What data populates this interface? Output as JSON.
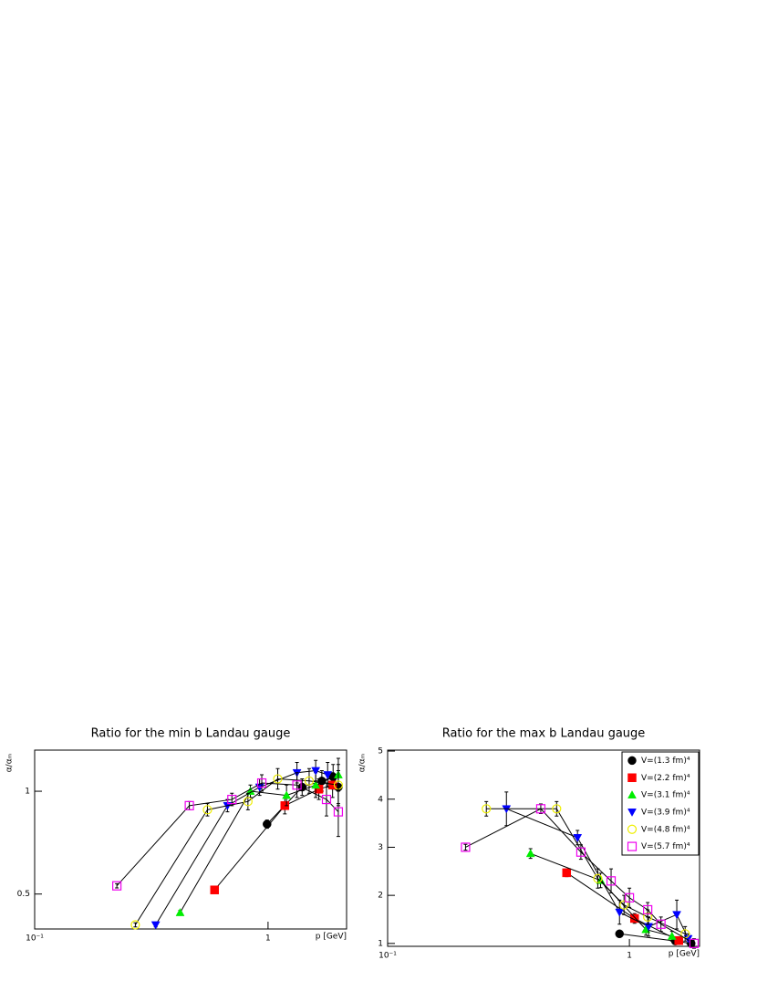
{
  "chart_data": [
    {
      "type": "scatter",
      "title": "Ratio for the min b Landau gauge",
      "x_label": "p [GeV]",
      "y_label": "α/αₘ",
      "log_x": true,
      "xlim": [
        0.1,
        2.17
      ],
      "xticks": [
        {
          "value": 0.1,
          "label": "10⁻¹"
        },
        1
      ],
      "ylim": [
        0.33,
        1.2
      ],
      "yticks": [
        0.5,
        1
      ],
      "series": [
        {
          "color": "#000000",
          "marker": "circle",
          "x": [
            0.99,
            1.4,
            1.7,
            1.9,
            2.0
          ],
          "values": [
            0.84,
            1.02,
            1.05,
            1.07,
            1.02
          ],
          "errors": [
            0.02,
            0.04,
            0.05,
            0.06,
            0.08
          ]
        },
        {
          "color": "#ff0000",
          "marker": "square",
          "x": [
            0.59,
            1.18,
            1.65,
            1.89
          ],
          "values": [
            0.52,
            0.93,
            1.01,
            1.03
          ],
          "errors": [
            0.01,
            0.04,
            0.05,
            0.06
          ]
        },
        {
          "color": "#00ee00",
          "marker": "triangle-up",
          "x": [
            0.42,
            0.84,
            1.2,
            1.6,
            2.0
          ],
          "values": [
            0.41,
            1.0,
            0.98,
            1.03,
            1.08
          ],
          "errors": [
            0.01,
            0.03,
            0.05,
            0.06,
            0.08
          ]
        },
        {
          "color": "#0000ff",
          "marker": "triangle-down",
          "x": [
            0.33,
            0.67,
            0.92,
            1.33,
            1.6,
            1.8
          ],
          "values": [
            0.35,
            0.93,
            1.02,
            1.09,
            1.1,
            1.08
          ],
          "errors": [
            0.01,
            0.03,
            0.04,
            0.05,
            0.05,
            0.06
          ]
        },
        {
          "color": "#eeee00",
          "marker": "circle-open",
          "x": [
            0.27,
            0.55,
            0.82,
            1.1,
            1.5,
            2.0
          ],
          "values": [
            0.35,
            0.91,
            0.95,
            1.06,
            1.05,
            1.03
          ],
          "errors": [
            0.01,
            0.03,
            0.04,
            0.05,
            0.06,
            0.1
          ]
        },
        {
          "color": "#ee00ee",
          "marker": "square-open",
          "x": [
            0.225,
            0.46,
            0.7,
            0.94,
            1.33,
            1.78,
            2.0
          ],
          "values": [
            0.54,
            0.93,
            0.96,
            1.04,
            1.03,
            0.96,
            0.9
          ],
          "errors": [
            0.01,
            0.02,
            0.03,
            0.04,
            0.06,
            0.08,
            0.12
          ]
        }
      ]
    },
    {
      "type": "scatter",
      "title": "Ratio for the max b Landau gauge",
      "x_label": "p [GeV]",
      "y_label": "α/αₘ",
      "log_x": true,
      "xlim": [
        0.1,
        1.95
      ],
      "xticks": [
        {
          "value": 0.1,
          "label": "10⁻¹"
        },
        1
      ],
      "ylim": [
        0.94,
        5.02
      ],
      "yticks": [
        1,
        2,
        3,
        4,
        5
      ],
      "legend": "top-right",
      "series": [
        {
          "name": "V=(1.3 fm)⁴",
          "color": "#000000",
          "marker": "circle",
          "x": [
            0.91,
            1.55,
            1.8
          ],
          "values": [
            1.2,
            1.05,
            1.0
          ],
          "errors": [
            0.03,
            0.05,
            0.06
          ]
        },
        {
          "name": "V=(2.2 fm)⁴",
          "color": "#ff0000",
          "marker": "square",
          "x": [
            0.55,
            1.05,
            1.6
          ],
          "values": [
            2.47,
            1.52,
            1.06
          ],
          "errors": [
            0.08,
            0.1,
            0.08
          ]
        },
        {
          "name": "V=(3.1 fm)⁴",
          "color": "#00ee00",
          "marker": "triangle-up",
          "x": [
            0.39,
            0.76,
            1.17,
            1.5
          ],
          "values": [
            2.87,
            2.31,
            1.29,
            1.15
          ],
          "errors": [
            0.1,
            0.15,
            0.12,
            0.1
          ]
        },
        {
          "name": "V=(3.9 fm)⁴",
          "color": "#0000ff",
          "marker": "triangle-down",
          "x": [
            0.31,
            0.61,
            0.91,
            1.2,
            1.57,
            1.75
          ],
          "values": [
            3.8,
            3.2,
            1.65,
            1.35,
            1.6,
            1.1
          ],
          "errors": [
            0.35,
            0.15,
            0.25,
            0.2,
            0.3,
            0.1
          ]
        },
        {
          "name": "V=(4.8 fm)⁴",
          "color": "#eeee00",
          "marker": "circle-open",
          "x": [
            0.256,
            0.5,
            0.74,
            0.95,
            1.19,
            1.7
          ],
          "values": [
            3.8,
            3.8,
            2.35,
            1.8,
            1.55,
            1.2
          ],
          "errors": [
            0.15,
            0.15,
            0.2,
            0.2,
            0.15,
            0.15
          ]
        },
        {
          "name": "V=(5.7 fm)⁴",
          "color": "#ee00ee",
          "marker": "square-open",
          "x": [
            0.21,
            0.43,
            0.63,
            0.84,
            1.0,
            1.19,
            1.35,
            1.85
          ],
          "values": [
            3.0,
            3.8,
            2.9,
            2.3,
            1.95,
            1.7,
            1.4,
            1.0
          ],
          "errors": [
            0.06,
            0.1,
            0.15,
            0.25,
            0.2,
            0.15,
            0.15,
            0.1
          ]
        }
      ]
    }
  ]
}
